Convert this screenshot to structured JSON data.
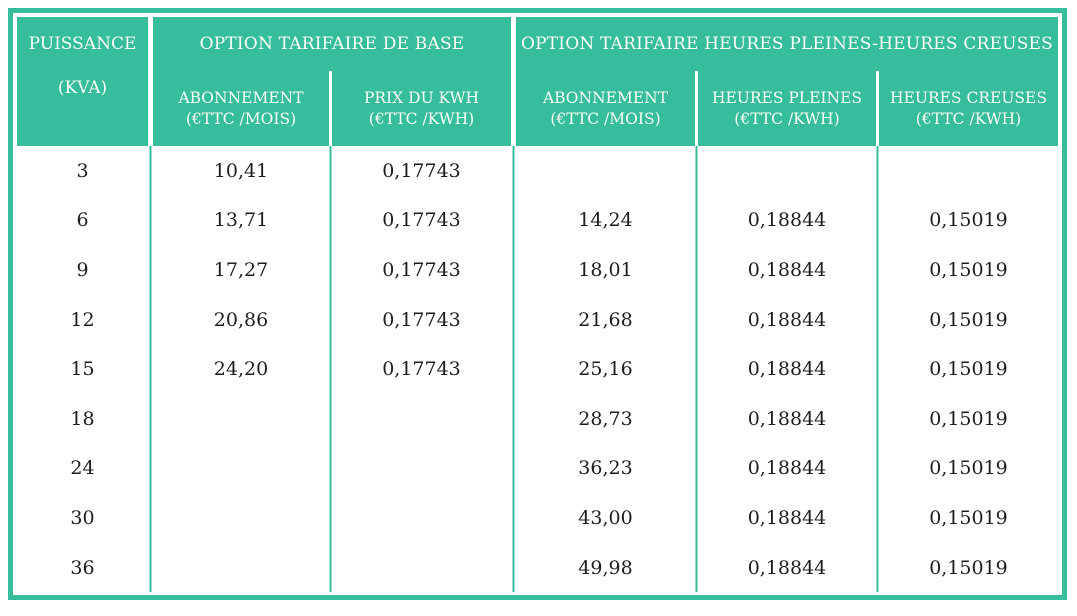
{
  "colors": {
    "accent": "#35bd9c",
    "header_text": "#fdfcf5",
    "body_text": "#1d1d1b"
  },
  "table": {
    "puissance": {
      "line1": "PUISSANCE",
      "line2": "(KVA)"
    },
    "groups": [
      {
        "title": "OPTION TARIFAIRE DE BASE",
        "columns": [
          {
            "line1": "ABONNEMENT",
            "line2": "(€TTC /MOIS)"
          },
          {
            "line1": "PRIX DU KWH",
            "line2": "(€TTC /KWH)"
          }
        ]
      },
      {
        "title": "OPTION TARIFAIRE HEURES PLEINES-HEURES CREUSES",
        "columns": [
          {
            "line1": "ABONNEMENT",
            "line2": "(€TTC /MOIS)"
          },
          {
            "line1": "HEURES PLEINES",
            "line2": "(€TTC /KWH)"
          },
          {
            "line1": "HEURES CREUSES",
            "line2": "(€TTC /KWH)"
          }
        ]
      }
    ],
    "column_keys": [
      "puissance",
      "base-abonnement",
      "base-prix-kwh",
      "hphc-abonnement",
      "heures-pleines",
      "heures-creuses"
    ],
    "rows": [
      [
        "3",
        "10,41",
        "0,17743",
        "",
        "",
        ""
      ],
      [
        "6",
        "13,71",
        "0,17743",
        "14,24",
        "0,18844",
        "0,15019"
      ],
      [
        "9",
        "17,27",
        "0,17743",
        "18,01",
        "0,18844",
        "0,15019"
      ],
      [
        "12",
        "20,86",
        "0,17743",
        "21,68",
        "0,18844",
        "0,15019"
      ],
      [
        "15",
        "24,20",
        "0,17743",
        "25,16",
        "0,18844",
        "0,15019"
      ],
      [
        "18",
        "",
        "",
        "28,73",
        "0,18844",
        "0,15019"
      ],
      [
        "24",
        "",
        "",
        "36,23",
        "0,18844",
        "0,15019"
      ],
      [
        "30",
        "",
        "",
        "43,00",
        "0,18844",
        "0,15019"
      ],
      [
        "36",
        "",
        "",
        "49,98",
        "0,18844",
        "0,15019"
      ]
    ]
  }
}
